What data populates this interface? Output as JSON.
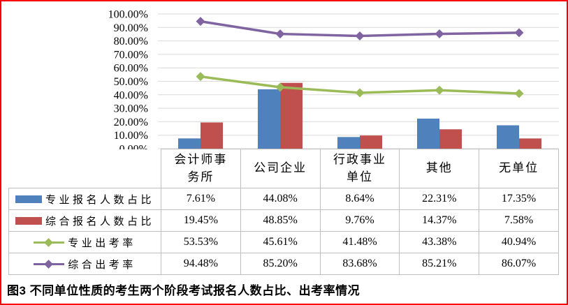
{
  "caption": "图3  不同单位性质的考生两个阶段考试报名人数占比、出考率情况",
  "colors": {
    "bar_series1": "#4F81BD",
    "bar_series2": "#C0504D",
    "line_series1": "#9BBB59",
    "line_series2": "#8064A2",
    "gridline": "#D9D9D9",
    "table_border": "#BFBFBF",
    "figure_border": "#FB0005",
    "text": "#000000",
    "background": "#FFFFFF"
  },
  "chart_data": {
    "type": "combo-bar-line",
    "title": "",
    "xlabel": "",
    "ylabel": "",
    "categories": [
      "会计师事务所",
      "公司企业",
      "行政事业单位",
      "其他",
      "无单位"
    ],
    "series": [
      {
        "name": "专业报名人数占比",
        "type": "bar",
        "color": "#4F81BD",
        "values": [
          7.61,
          44.08,
          8.64,
          22.31,
          17.35
        ]
      },
      {
        "name": "综合报名人数占比",
        "type": "bar",
        "color": "#C0504D",
        "values": [
          19.45,
          48.85,
          9.76,
          14.37,
          7.58
        ]
      },
      {
        "name": "专业出考率",
        "type": "line",
        "color": "#9BBB59",
        "values": [
          53.53,
          45.61,
          41.48,
          43.38,
          40.94
        ]
      },
      {
        "name": "综合出考率",
        "type": "line",
        "color": "#8064A2",
        "values": [
          94.48,
          85.2,
          83.68,
          85.21,
          86.07
        ]
      }
    ],
    "y_axis": {
      "min": 0,
      "max": 100,
      "step": 10,
      "tick_labels": [
        "0.00%",
        "10.00%",
        "20.00%",
        "30.00%",
        "40.00%",
        "50.00%",
        "60.00%",
        "70.00%",
        "80.00%",
        "90.00%",
        "100.00%"
      ]
    },
    "grid": true,
    "legend_position": "table-left",
    "value_suffix": "%",
    "table_cells": [
      [
        "7.61%",
        "44.08%",
        "8.64%",
        "22.31%",
        "17.35%"
      ],
      [
        "19.45%",
        "48.85%",
        "9.76%",
        "14.37%",
        "7.58%"
      ],
      [
        "53.53%",
        "45.61%",
        "41.48%",
        "43.38%",
        "40.94%"
      ],
      [
        "94.48%",
        "85.20%",
        "83.68%",
        "85.21%",
        "86.07%"
      ]
    ]
  }
}
